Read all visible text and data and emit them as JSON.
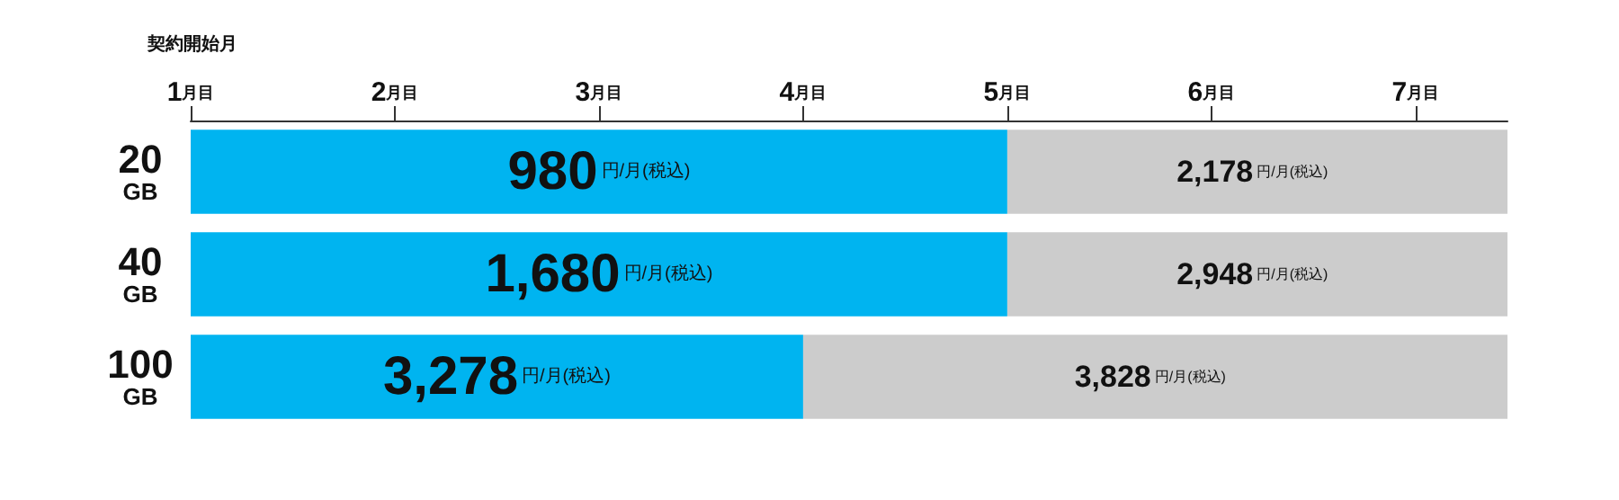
{
  "chart_data": {
    "type": "bar",
    "orientation": "horizontal",
    "xlabel": "契約開始月",
    "categories": [
      "20GB",
      "40GB",
      "100GB"
    ],
    "series": [
      {
        "color": "#00b4f0",
        "base": [
          1,
          1,
          1
        ],
        "values": [
          4,
          4,
          3
        ]
      },
      {
        "color": "#cccccc",
        "base": [
          5,
          5,
          4
        ],
        "values": [
          2.45,
          2.45,
          3.45
        ]
      }
    ],
    "annotations": [
      {
        "text": "980円/月(税込)",
        "x": 3,
        "y": "20GB"
      },
      {
        "text": "1,680円/月(税込)",
        "x": 3,
        "y": "40GB"
      },
      {
        "text": "3,278円/月(税込)",
        "x": 2.5,
        "y": "100GB"
      },
      {
        "text": "2,178円/月(税込)",
        "x": 6.2,
        "y": "20GB"
      },
      {
        "text": "2,948円/月(税込)",
        "x": 6.2,
        "y": "40GB"
      },
      {
        "text": "3,828円/月(税込)",
        "x": 5.7,
        "y": "100GB"
      }
    ],
    "xlim": [
      1,
      7.45
    ],
    "xticks": [
      {
        "value": 1,
        "label": "1月目"
      },
      {
        "value": 2,
        "label": "2月目"
      },
      {
        "value": 3,
        "label": "3月目"
      },
      {
        "value": 4,
        "label": "4月目"
      },
      {
        "value": 5,
        "label": "5月目"
      },
      {
        "value": 6,
        "label": "6月目"
      },
      {
        "value": 7,
        "label": "7月目"
      }
    ],
    "grid": false
  }
}
